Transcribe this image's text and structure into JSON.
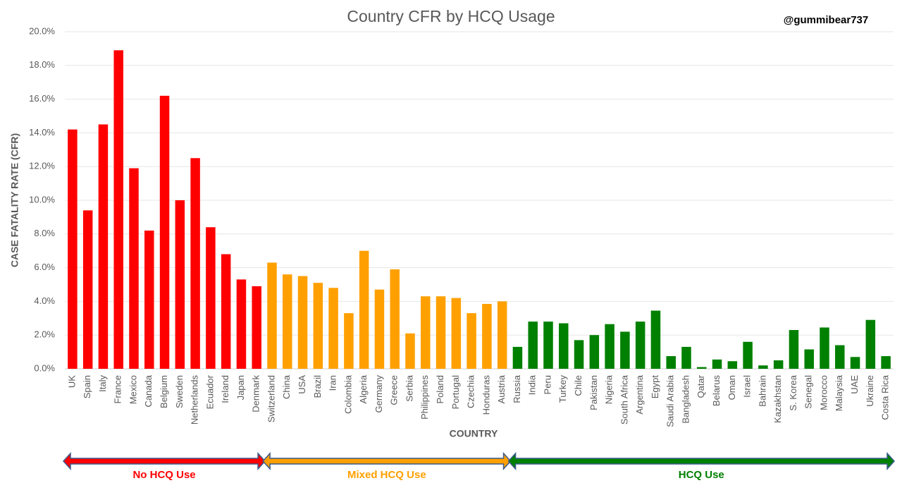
{
  "chart_data": {
    "type": "bar",
    "title": "Country CFR by HCQ Usage",
    "watermark": "@gummibear737",
    "y_label": "CASE FATALITY RATE (CFR)",
    "x_label": "COUNTRY",
    "categories": [
      "UK",
      "Spain",
      "Italy",
      "France",
      "Mexico",
      "Canada",
      "Belgium",
      "Sweden",
      "Netherlands",
      "Ecuador",
      "Ireland",
      "Japan",
      "Denmark",
      "Switzerland",
      "China",
      "USA",
      "Brazil",
      "Iran",
      "Colombia",
      "Algeria",
      "Germany",
      "Greece",
      "Serbia",
      "Philippines",
      "Poland",
      "Portugal",
      "Czechia",
      "Honduras",
      "Austria",
      "Russia",
      "India",
      "Peru",
      "Turkey",
      "Chile",
      "Pakistan",
      "Nigeria",
      "South Africa",
      "Argentina",
      "Egypt",
      "Saudi Arabia",
      "Bangladesh",
      "Qatar",
      "Belarus",
      "Oman",
      "Israel",
      "Bahrain",
      "Kazakhstan",
      "S. Korea",
      "Senegal",
      "Morocco",
      "Malaysia",
      "UAE",
      "Ukraine",
      "Costa Rica"
    ],
    "values": [
      14.2,
      9.4,
      14.5,
      18.9,
      11.9,
      8.2,
      16.2,
      10.0,
      12.5,
      8.4,
      6.8,
      5.3,
      4.9,
      6.3,
      5.6,
      5.5,
      5.1,
      4.8,
      3.3,
      7.0,
      4.7,
      5.9,
      2.1,
      4.3,
      4.3,
      4.2,
      3.3,
      3.85,
      4.0,
      1.3,
      2.8,
      2.8,
      2.7,
      1.7,
      2.0,
      2.65,
      2.2,
      2.8,
      3.45,
      0.75,
      1.3,
      0.1,
      0.55,
      0.45,
      1.6,
      0.2,
      0.5,
      2.3,
      1.15,
      2.45,
      1.4,
      0.7,
      2.9,
      0.75
    ],
    "bar_colors": [
      "#ff0000",
      "#ff0000",
      "#ff0000",
      "#ff0000",
      "#ff0000",
      "#ff0000",
      "#ff0000",
      "#ff0000",
      "#ff0000",
      "#ff0000",
      "#ff0000",
      "#ff0000",
      "#ff0000",
      "#ffa000",
      "#ffa000",
      "#ffa000",
      "#ffa000",
      "#ffa000",
      "#ffa000",
      "#ffa000",
      "#ffa000",
      "#ffa000",
      "#ffa000",
      "#ffa000",
      "#ffa000",
      "#ffa000",
      "#ffa000",
      "#ffa000",
      "#ffa000",
      "#008000",
      "#008000",
      "#008000",
      "#008000",
      "#008000",
      "#008000",
      "#008000",
      "#008000",
      "#008000",
      "#008000",
      "#008000",
      "#008000",
      "#008000",
      "#008000",
      "#008000",
      "#008000",
      "#008000",
      "#008000",
      "#008000",
      "#008000",
      "#008000",
      "#008000",
      "#008000",
      "#008000",
      "#008000"
    ],
    "group_labels": [
      {
        "text": "No HCQ Use",
        "color": "#ff0000"
      },
      {
        "text": "Mixed HCQ Use",
        "color": "#ffa000"
      },
      {
        "text": "HCQ Use",
        "color": "#008000"
      }
    ],
    "ylim": [
      0,
      20
    ],
    "yticks": [
      {
        "value": 0,
        "label": "0.0%"
      },
      {
        "value": 2,
        "label": "2.0%"
      },
      {
        "value": 4,
        "label": "4.0%"
      },
      {
        "value": 6,
        "label": "6.0%"
      },
      {
        "value": 8,
        "label": "8.0%"
      },
      {
        "value": 10,
        "label": "10.0%"
      },
      {
        "value": 12,
        "label": "12.0%"
      },
      {
        "value": 14,
        "label": "14.0%"
      },
      {
        "value": 16,
        "label": "16.0%"
      },
      {
        "value": 18,
        "label": "18.0%"
      },
      {
        "value": 20,
        "label": "20.0%"
      }
    ],
    "grid": true
  }
}
